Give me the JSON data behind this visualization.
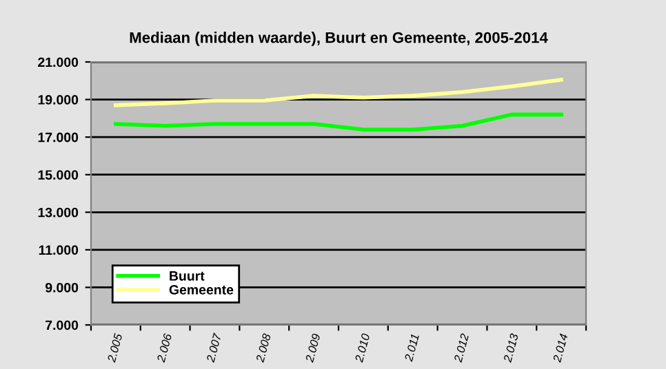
{
  "chart_data": {
    "type": "line",
    "title": "Mediaan (midden waarde), Buurt en Gemeente, 2005-2014",
    "categories": [
      "2.005",
      "2.006",
      "2.007",
      "2.008",
      "2.009",
      "2.010",
      "2.011",
      "2.012",
      "2.013",
      "2.014"
    ],
    "series": [
      {
        "name": "Buurt",
        "color": "#00ff00",
        "values": [
          17700,
          17600,
          17700,
          17700,
          17700,
          17400,
          17400,
          17600,
          18200,
          18200
        ]
      },
      {
        "name": "Gemeente",
        "color": "#ffff99",
        "values": [
          18700,
          18800,
          18950,
          18950,
          19200,
          19100,
          19200,
          19400,
          19700,
          20050
        ]
      }
    ],
    "ylim": [
      7000,
      21000
    ],
    "yticks": [
      {
        "value": 7000,
        "label": "7.000"
      },
      {
        "value": 9000,
        "label": "9.000"
      },
      {
        "value": 11000,
        "label": "11.000"
      },
      {
        "value": 13000,
        "label": "13.000"
      },
      {
        "value": 15000,
        "label": "15.000"
      },
      {
        "value": 17000,
        "label": "17.000"
      },
      {
        "value": 19000,
        "label": "19.000"
      },
      {
        "value": 21000,
        "label": "21.000"
      }
    ],
    "grid": "y",
    "legend": "bottom left",
    "marker": "none",
    "line_style": "solid"
  }
}
